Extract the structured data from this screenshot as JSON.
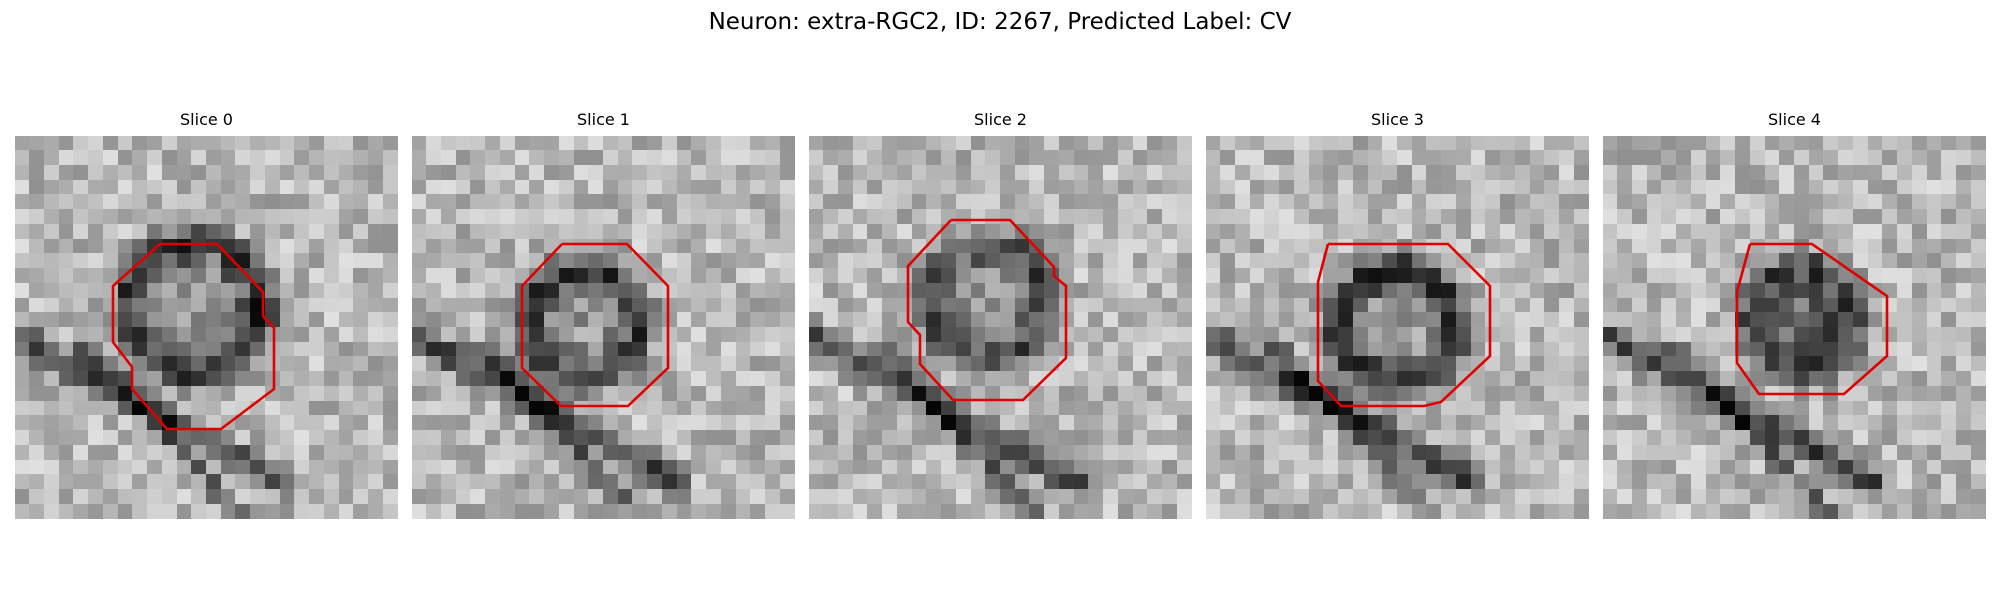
{
  "figure": {
    "title": "Neuron: extra-RGC2, ID: 2267, Predicted Label: CV",
    "contour_color": "#e00000"
  },
  "panels": [
    {
      "title": "Slice 0"
    },
    {
      "title": "Slice 1"
    },
    {
      "title": "Slice 2"
    },
    {
      "title": "Slice 3"
    },
    {
      "title": "Slice 4"
    }
  ]
}
